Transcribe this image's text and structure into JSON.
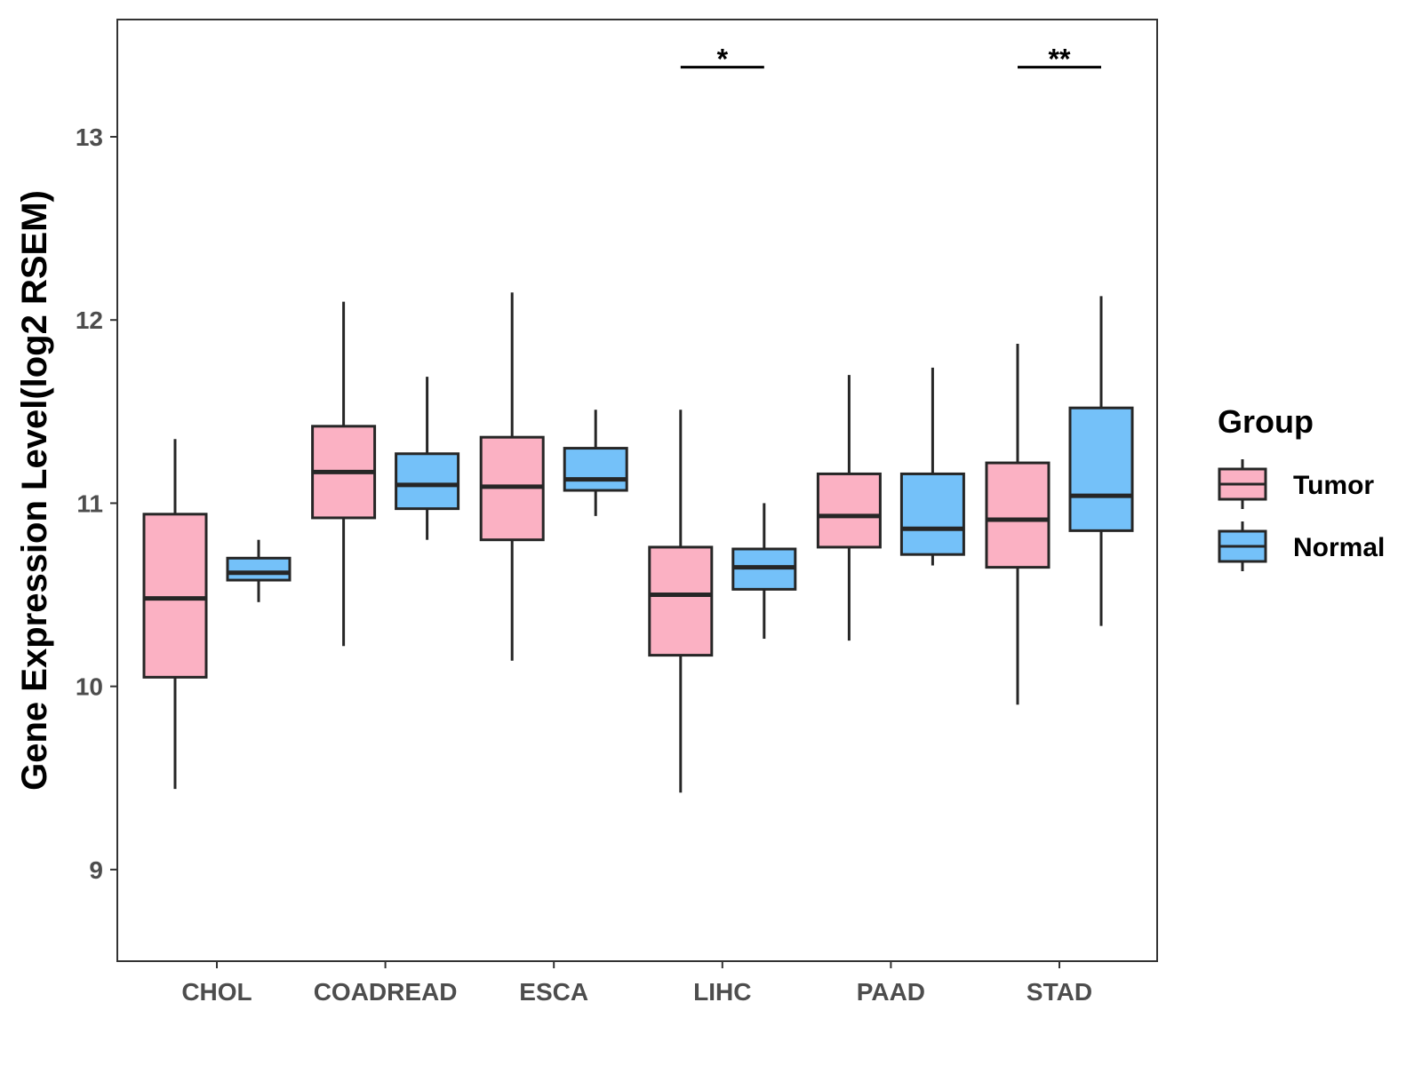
{
  "chart_data": {
    "type": "boxplot",
    "title": "",
    "xlabel": "",
    "ylabel": "Gene Expression Level(log2 RSEM)",
    "ylim": [
      8.5,
      13.64
    ],
    "yticks": [
      9,
      10,
      11,
      12,
      13
    ],
    "grid": false,
    "categories": [
      "CHOL",
      "COADREAD",
      "ESCA",
      "LIHC",
      "PAAD",
      "STAD"
    ],
    "legend": {
      "title": "Group",
      "position": "right",
      "items": [
        {
          "label": "Tumor",
          "color": "#FBB1C3"
        },
        {
          "label": "Normal",
          "color": "#74C1F9"
        }
      ]
    },
    "series": [
      {
        "name": "Tumor",
        "color": "#FBB1C3",
        "boxes": [
          {
            "min": 9.44,
            "q1": 10.05,
            "median": 10.48,
            "q3": 10.94,
            "max": 11.35
          },
          {
            "min": 10.22,
            "q1": 10.92,
            "median": 11.17,
            "q3": 11.42,
            "max": 12.1
          },
          {
            "min": 10.14,
            "q1": 10.8,
            "median": 11.09,
            "q3": 11.36,
            "max": 12.15
          },
          {
            "min": 9.42,
            "q1": 10.17,
            "median": 10.5,
            "q3": 10.76,
            "max": 11.51
          },
          {
            "min": 10.25,
            "q1": 10.76,
            "median": 10.93,
            "q3": 11.16,
            "max": 11.7
          },
          {
            "min": 9.9,
            "q1": 10.65,
            "median": 10.91,
            "q3": 11.22,
            "max": 11.87
          }
        ]
      },
      {
        "name": "Normal",
        "color": "#74C1F9",
        "boxes": [
          {
            "min": 10.46,
            "q1": 10.58,
            "median": 10.62,
            "q3": 10.7,
            "max": 10.8
          },
          {
            "min": 10.8,
            "q1": 10.97,
            "median": 11.1,
            "q3": 11.27,
            "max": 11.69
          },
          {
            "min": 10.93,
            "q1": 11.07,
            "median": 11.13,
            "q3": 11.3,
            "max": 11.51
          },
          {
            "min": 10.26,
            "q1": 10.53,
            "median": 10.65,
            "q3": 10.75,
            "max": 11.0
          },
          {
            "min": 10.66,
            "q1": 10.72,
            "median": 10.86,
            "q3": 11.16,
            "max": 11.74
          },
          {
            "min": 10.33,
            "q1": 10.85,
            "median": 11.04,
            "q3": 11.52,
            "max": 12.13
          }
        ]
      }
    ],
    "annotations": [
      {
        "category": "LIHC",
        "label": "*",
        "y": 13.38
      },
      {
        "category": "STAD",
        "label": "**",
        "y": 13.38
      }
    ]
  }
}
